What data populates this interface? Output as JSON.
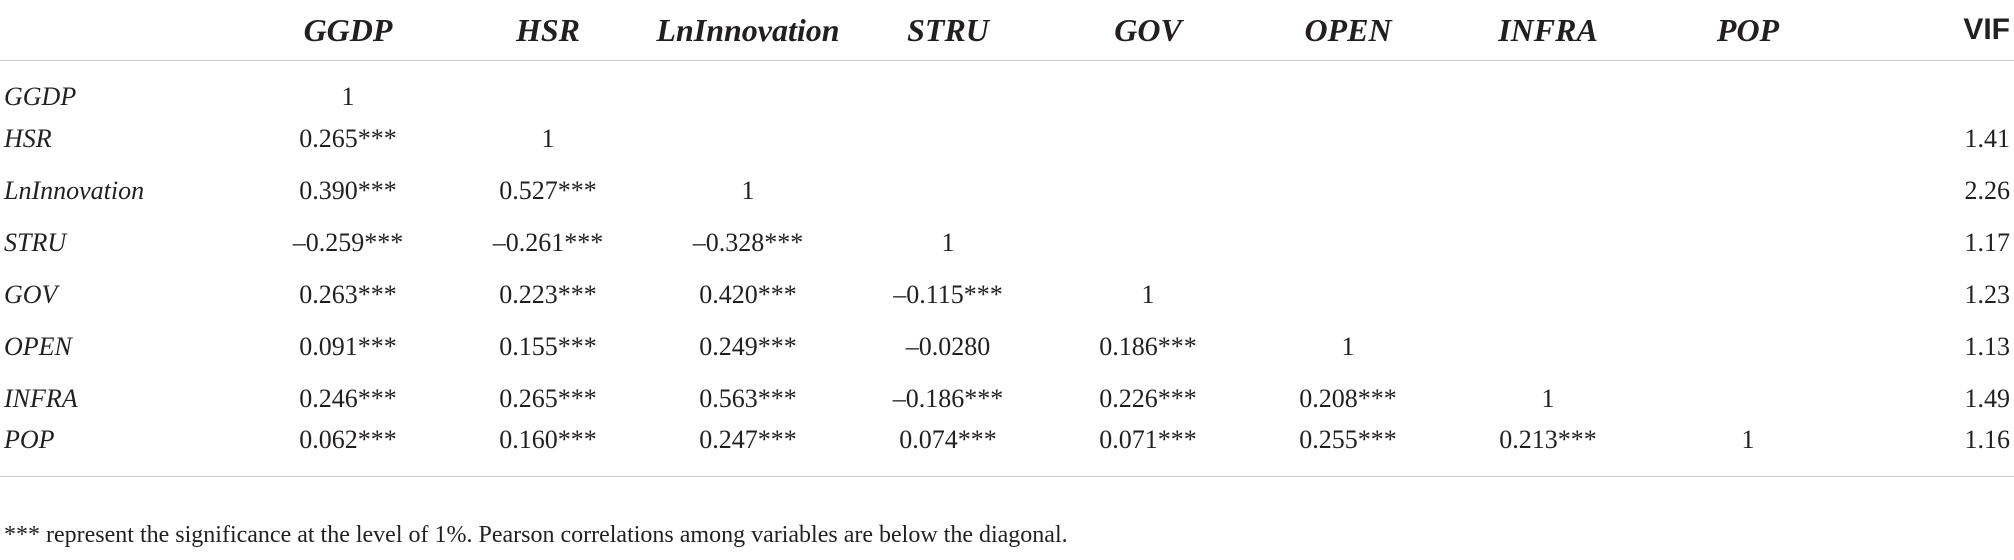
{
  "table": {
    "headers": [
      "",
      "GGDP",
      "HSR",
      "LnInnovation",
      "STRU",
      "GOV",
      "OPEN",
      "INFRA",
      "POP",
      "VIF"
    ],
    "rows": [
      {
        "label": "GGDP",
        "cells": [
          "1",
          "",
          "",
          "",
          "",
          "",
          "",
          ""
        ],
        "vif": ""
      },
      {
        "label": "HSR",
        "cells": [
          "0.265***",
          "1",
          "",
          "",
          "",
          "",
          "",
          ""
        ],
        "vif": "1.41"
      },
      {
        "label": "LnInnovation",
        "cells": [
          "0.390***",
          "0.527***",
          "1",
          "",
          "",
          "",
          "",
          ""
        ],
        "vif": "2.26"
      },
      {
        "label": "STRU",
        "cells": [
          "–0.259***",
          "–0.261***",
          "–0.328***",
          "1",
          "",
          "",
          "",
          ""
        ],
        "vif": "1.17"
      },
      {
        "label": "GOV",
        "cells": [
          "0.263***",
          "0.223***",
          "0.420***",
          "–0.115***",
          "1",
          "",
          "",
          ""
        ],
        "vif": "1.23"
      },
      {
        "label": "OPEN",
        "cells": [
          "0.091***",
          "0.155***",
          "0.249***",
          "–0.0280",
          "0.186***",
          "1",
          "",
          ""
        ],
        "vif": "1.13"
      },
      {
        "label": "INFRA",
        "cells": [
          "0.246***",
          "0.265***",
          "0.563***",
          "–0.186***",
          "0.226***",
          "0.208***",
          "1",
          ""
        ],
        "vif": "1.49"
      },
      {
        "label": "POP",
        "cells": [
          "0.062***",
          "0.160***",
          "0.247***",
          "0.074***",
          "0.071***",
          "0.255***",
          "0.213***",
          "1"
        ],
        "vif": "1.16"
      }
    ]
  },
  "footnote": "*** represent the significance at the level of 1%. Pearson correlations among variables are below the diagonal."
}
